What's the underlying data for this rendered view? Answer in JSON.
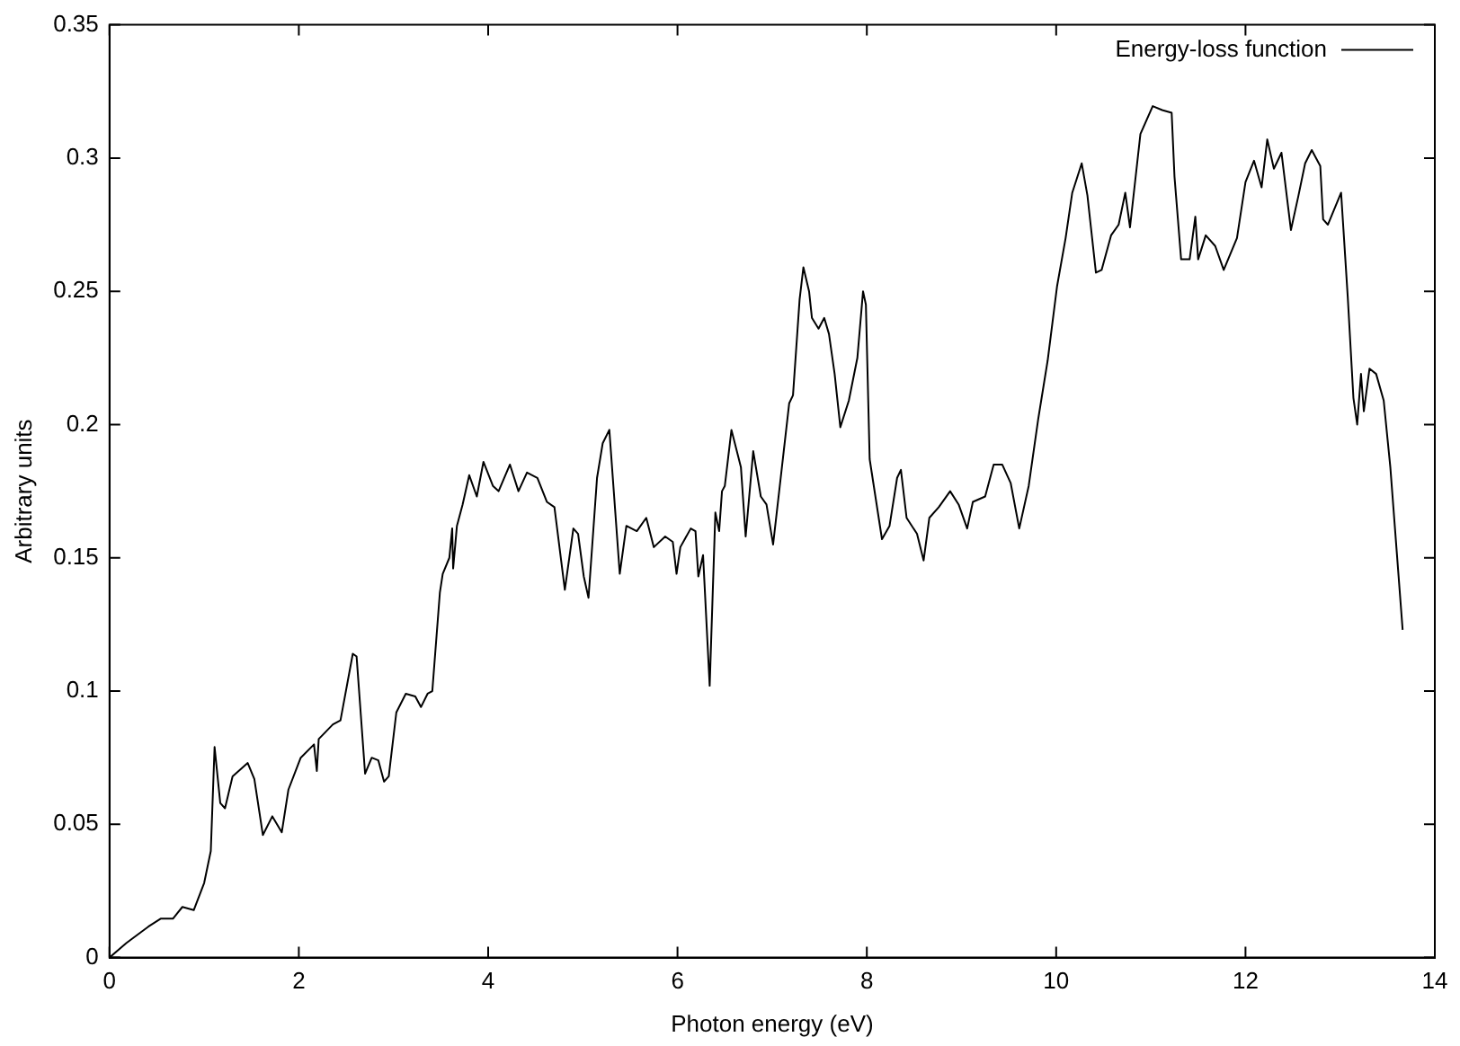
{
  "chart_data": {
    "type": "line",
    "xlabel": "Photon energy (eV)",
    "ylabel": "Arbitrary units",
    "legend": "top right",
    "xlim": [
      0,
      14
    ],
    "xticks": [
      0,
      2,
      4,
      6,
      8,
      10,
      12,
      14
    ],
    "ylim": [
      0,
      0.35
    ],
    "yticks": [
      0,
      0.05,
      0.1,
      0.15,
      0.2,
      0.25,
      0.3,
      0.35
    ],
    "series": [
      {
        "name": "Energy-loss function",
        "color": "#000000",
        "x": [
          0,
          0.18,
          0.41,
          0.54,
          0.67,
          0.77,
          0.89,
          1.0,
          1.07,
          1.11,
          1.17,
          1.22,
          1.3,
          1.46,
          1.53,
          1.62,
          1.72,
          1.82,
          1.89,
          2.02,
          2.16,
          2.19,
          2.21,
          2.36,
          2.44,
          2.57,
          2.61,
          2.7,
          2.77,
          2.84,
          2.9,
          2.95,
          3.03,
          3.13,
          3.23,
          3.29,
          3.36,
          3.41,
          3.49,
          3.52,
          3.59,
          3.62,
          3.63,
          3.67,
          3.73,
          3.8,
          3.88,
          3.95,
          4.05,
          4.11,
          4.23,
          4.32,
          4.41,
          4.52,
          4.62,
          4.7,
          4.81,
          4.9,
          4.95,
          5.01,
          5.06,
          5.15,
          5.21,
          5.28,
          5.39,
          5.46,
          5.57,
          5.67,
          5.75,
          5.87,
          5.95,
          5.99,
          6.03,
          6.14,
          6.19,
          6.22,
          6.27,
          6.34,
          6.4,
          6.44,
          6.47,
          6.5,
          6.57,
          6.67,
          6.72,
          6.8,
          6.88,
          6.94,
          7.01,
          7.18,
          7.22,
          7.29,
          7.33,
          7.39,
          7.42,
          7.49,
          7.55,
          7.6,
          7.66,
          7.72,
          7.81,
          7.9,
          7.96,
          7.99,
          8.03,
          8.16,
          8.24,
          8.32,
          8.36,
          8.42,
          8.53,
          8.6,
          8.66,
          8.76,
          8.88,
          8.97,
          9.06,
          9.12,
          9.25,
          9.34,
          9.43,
          9.52,
          9.61,
          9.71,
          9.81,
          9.91,
          10.01,
          10.1,
          10.17,
          10.27,
          10.33,
          10.42,
          10.48,
          10.58,
          10.66,
          10.73,
          10.78,
          10.89,
          11.02,
          11.12,
          11.22,
          11.25,
          11.32,
          11.41,
          11.47,
          11.5,
          11.58,
          11.68,
          11.77,
          11.91,
          12.0,
          12.09,
          12.17,
          12.23,
          12.3,
          12.38,
          12.48,
          12.56,
          12.63,
          12.7,
          12.79,
          12.82,
          12.87,
          13.01,
          13.08,
          13.14,
          13.18,
          13.22,
          13.25,
          13.31,
          13.38,
          13.46,
          13.53,
          13.66
        ],
        "values": [
          0,
          0.0055,
          0.0116,
          0.0146,
          0.0146,
          0.019,
          0.0178,
          0.028,
          0.04,
          0.079,
          0.058,
          0.056,
          0.068,
          0.073,
          0.067,
          0.046,
          0.053,
          0.047,
          0.063,
          0.075,
          0.08,
          0.07,
          0.082,
          0.0875,
          0.089,
          0.114,
          0.113,
          0.069,
          0.075,
          0.074,
          0.066,
          0.068,
          0.092,
          0.099,
          0.098,
          0.094,
          0.099,
          0.1,
          0.137,
          0.144,
          0.15,
          0.161,
          0.146,
          0.162,
          0.17,
          0.181,
          0.173,
          0.186,
          0.177,
          0.175,
          0.185,
          0.175,
          0.182,
          0.18,
          0.171,
          0.169,
          0.138,
          0.161,
          0.159,
          0.143,
          0.135,
          0.18,
          0.193,
          0.198,
          0.144,
          0.162,
          0.16,
          0.165,
          0.154,
          0.158,
          0.156,
          0.144,
          0.154,
          0.161,
          0.16,
          0.143,
          0.151,
          0.102,
          0.167,
          0.16,
          0.175,
          0.177,
          0.198,
          0.184,
          0.158,
          0.19,
          0.173,
          0.17,
          0.155,
          0.208,
          0.211,
          0.247,
          0.259,
          0.25,
          0.24,
          0.236,
          0.24,
          0.234,
          0.219,
          0.199,
          0.209,
          0.225,
          0.25,
          0.245,
          0.187,
          0.157,
          0.162,
          0.18,
          0.183,
          0.165,
          0.159,
          0.149,
          0.165,
          0.169,
          0.175,
          0.17,
          0.161,
          0.171,
          0.173,
          0.185,
          0.185,
          0.178,
          0.161,
          0.177,
          0.202,
          0.224,
          0.252,
          0.27,
          0.287,
          0.298,
          0.286,
          0.257,
          0.258,
          0.271,
          0.275,
          0.287,
          0.274,
          0.309,
          0.3195,
          0.318,
          0.317,
          0.293,
          0.262,
          0.262,
          0.278,
          0.262,
          0.271,
          0.267,
          0.258,
          0.27,
          0.291,
          0.299,
          0.289,
          0.307,
          0.296,
          0.302,
          0.273,
          0.286,
          0.298,
          0.303,
          0.297,
          0.277,
          0.275,
          0.287,
          0.248,
          0.21,
          0.2,
          0.219,
          0.205,
          0.221,
          0.219,
          0.209,
          0.184,
          0.123
        ]
      }
    ]
  }
}
